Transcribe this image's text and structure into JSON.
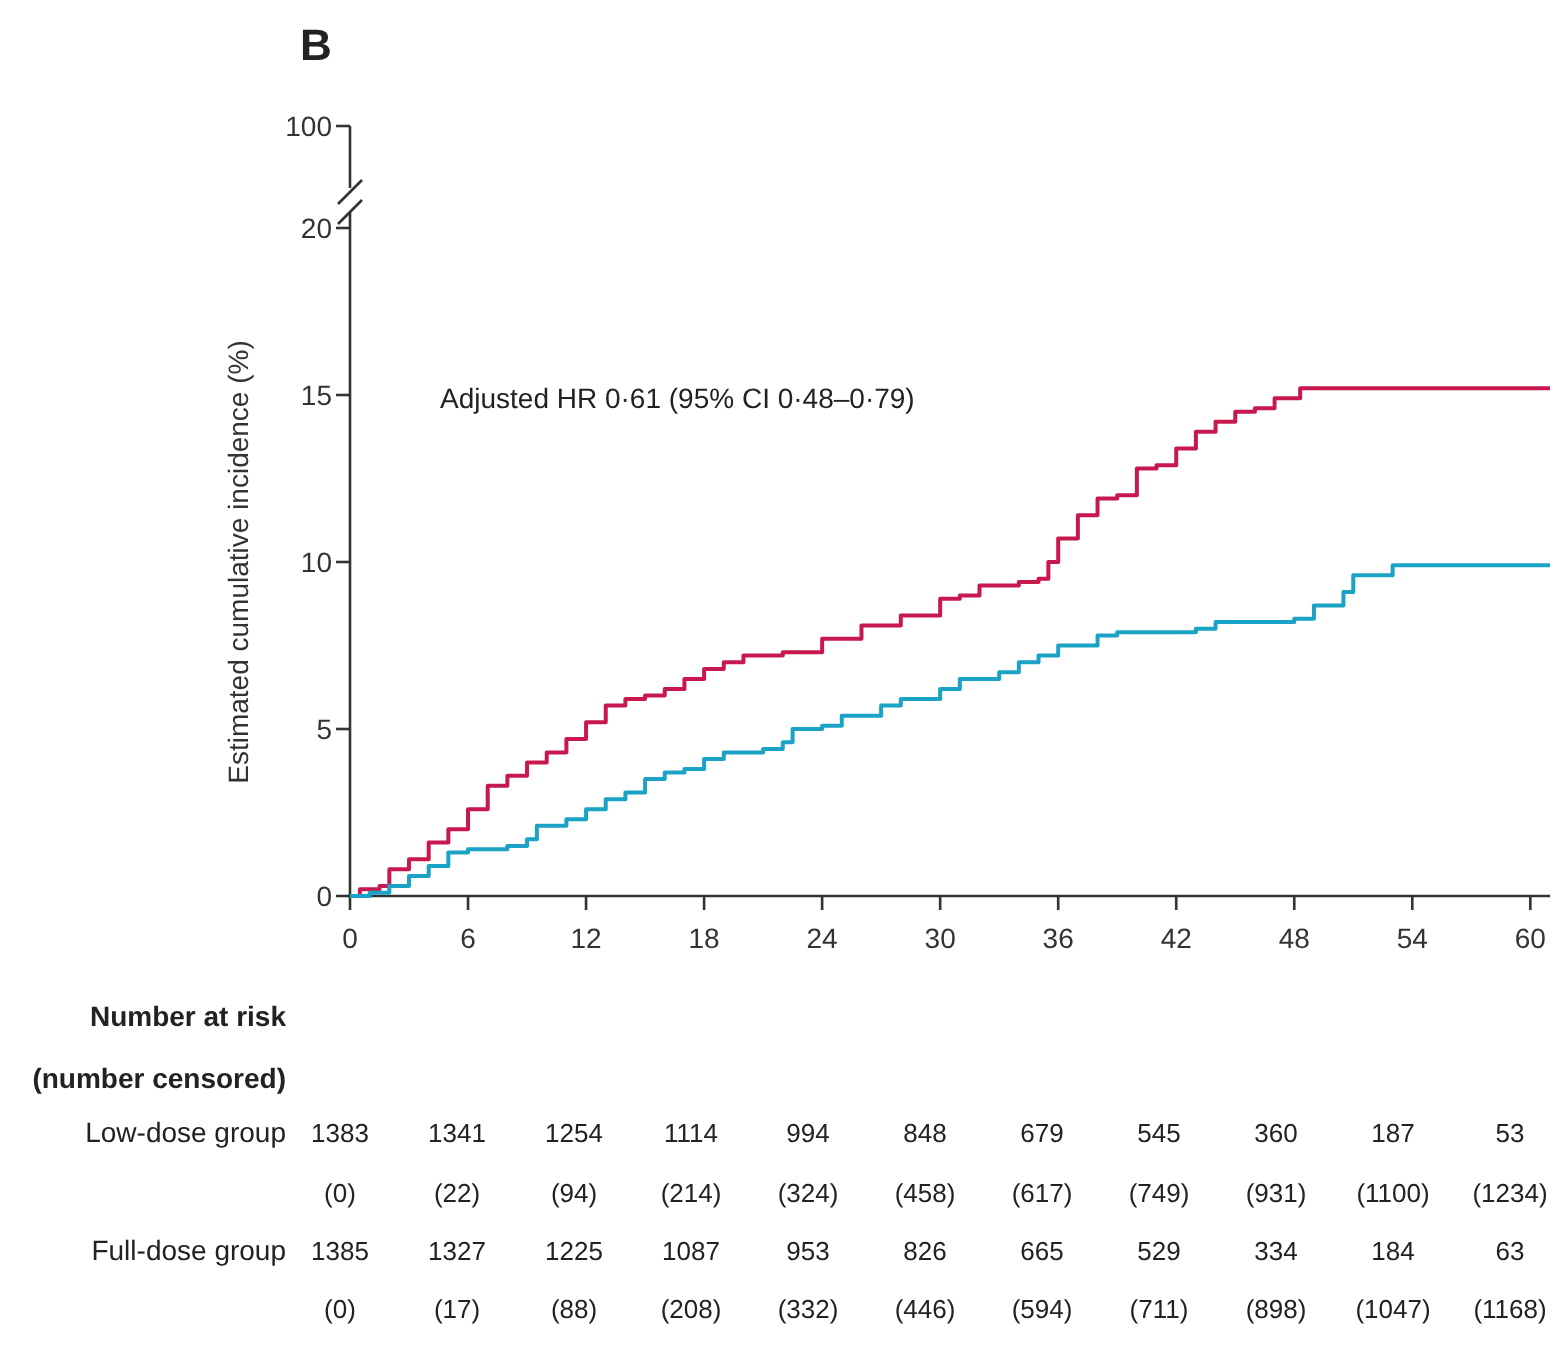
{
  "chart_data": {
    "type": "step",
    "title": "B",
    "ylabel": "Estimated cumulative incidence (%)",
    "xlim": [
      0,
      61
    ],
    "xticks": [
      0,
      6,
      12,
      18,
      24,
      30,
      36,
      42,
      48,
      54,
      60
    ],
    "ylim": [
      0,
      20
    ],
    "yticks": [
      0,
      5,
      10,
      15,
      20
    ],
    "grid": false,
    "line_style": "solid",
    "series": [
      {
        "color": "#c8194f",
        "x": [
          0,
          0.5,
          1.5,
          2,
          3,
          4,
          5,
          6,
          7,
          8,
          9,
          10,
          11,
          12,
          13,
          14,
          15,
          16,
          17,
          18,
          19,
          20,
          22,
          24,
          26,
          28,
          30,
          31,
          32,
          34,
          35,
          35.5,
          36,
          37,
          38,
          39,
          40,
          41,
          42,
          43,
          44,
          45,
          46,
          47,
          48.3,
          61
        ],
        "values": [
          0,
          0.2,
          0.3,
          0.8,
          1.1,
          1.6,
          2,
          2.6,
          3.3,
          3.6,
          4,
          4.3,
          4.7,
          5.2,
          5.7,
          5.9,
          6,
          6.2,
          6.5,
          6.8,
          7,
          7.2,
          7.3,
          7.7,
          8.1,
          8.4,
          8.9,
          9,
          9.3,
          9.4,
          9.5,
          10,
          10.7,
          11.4,
          11.9,
          12,
          12.8,
          12.9,
          13.4,
          13.9,
          14.2,
          14.5,
          14.6,
          14.9,
          15.2,
          15.2
        ]
      },
      {
        "color": "#1aa3c5",
        "x": [
          0,
          1,
          2,
          3,
          4,
          5,
          6,
          8,
          9,
          9.5,
          11,
          12,
          13,
          14,
          15,
          16,
          17,
          18,
          19,
          21,
          22,
          22.5,
          24,
          25,
          27,
          28,
          30,
          31,
          33,
          34,
          35,
          36,
          38,
          39,
          43,
          44,
          48,
          49,
          50.5,
          51,
          53,
          61
        ],
        "values": [
          0,
          0.1,
          0.3,
          0.6,
          0.9,
          1.3,
          1.4,
          1.5,
          1.7,
          2.1,
          2.3,
          2.6,
          2.9,
          3.1,
          3.5,
          3.7,
          3.8,
          4.1,
          4.3,
          4.4,
          4.6,
          5,
          5.1,
          5.4,
          5.7,
          5.9,
          6.2,
          6.5,
          6.7,
          7,
          7.2,
          7.5,
          7.8,
          7.9,
          8,
          8.2,
          8.3,
          8.7,
          9.1,
          9.6,
          9.9,
          9.9
        ]
      }
    ],
    "annotations": [
      "Adjusted HR 0·61 (95% CI 0·48–0·79)",
      "Number at risk",
      "(number censored)",
      "Low-dose group",
      "1383",
      "1341",
      "1254",
      "1114",
      "994",
      "848",
      "679",
      "545",
      "360",
      "187",
      "53",
      "(0)",
      "(22)",
      "(94)",
      "(214)",
      "(324)",
      "(458)",
      "(617)",
      "(749)",
      "(931)",
      "(1100)",
      "(1234)",
      "Full-dose group",
      "1385",
      "1327",
      "1225",
      "1087",
      "953",
      "826",
      "665",
      "529",
      "334",
      "184",
      "63",
      "(0)",
      "(17)",
      "(88)",
      "(208)",
      "(332)",
      "(446)",
      "(594)",
      "(711)",
      "(898)",
      "(1047)",
      "(1168)",
      "100"
    ]
  }
}
